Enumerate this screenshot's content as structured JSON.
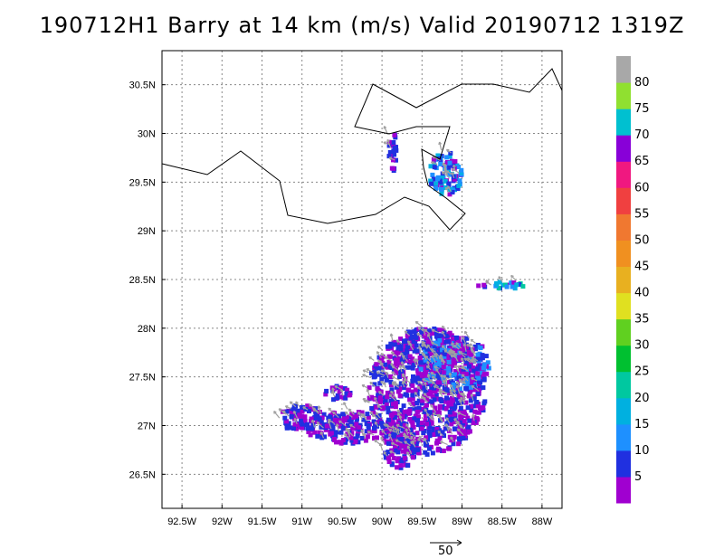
{
  "title": "190712H1 Barry at 14 km (m/s) Valid 20190712 1319Z",
  "map": {
    "lon_range": [
      -92.75,
      -87.75
    ],
    "lat_range": [
      26.15,
      30.85
    ],
    "lon_ticks": [
      "92.5W",
      "92W",
      "91.5W",
      "91W",
      "90.5W",
      "90W",
      "89.5W",
      "89W",
      "88.5W",
      "88W"
    ],
    "lon_tick_values": [
      -92.5,
      -92.0,
      -91.5,
      -91.0,
      -90.5,
      -90.0,
      -89.5,
      -89.0,
      -88.5,
      -88.0
    ],
    "lat_ticks": [
      "30.5N",
      "30N",
      "29.5N",
      "29N",
      "28.5N",
      "28N",
      "27.5N",
      "27N",
      "26.5N"
    ],
    "lat_tick_values": [
      30.5,
      30.0,
      29.5,
      29.0,
      28.5,
      28.0,
      27.5,
      27.0,
      26.5
    ],
    "grid": true,
    "coastline_color": "#000000",
    "vector_color": "#a0a0a0"
  },
  "reference_vector": {
    "label": "50"
  },
  "colorbar": {
    "labels": [
      "5",
      "10",
      "15",
      "20",
      "25",
      "30",
      "35",
      "40",
      "45",
      "50",
      "55",
      "60",
      "65",
      "70",
      "75",
      "80"
    ],
    "colors": [
      "#a000d0",
      "#2030e0",
      "#1e90ff",
      "#00b0e0",
      "#00c8a0",
      "#00c030",
      "#60d020",
      "#e0e020",
      "#e8b020",
      "#f09020",
      "#f07830",
      "#f04040",
      "#f01880",
      "#8800d8",
      "#00c0d0",
      "#90e030",
      "#a8a8a8"
    ]
  }
}
